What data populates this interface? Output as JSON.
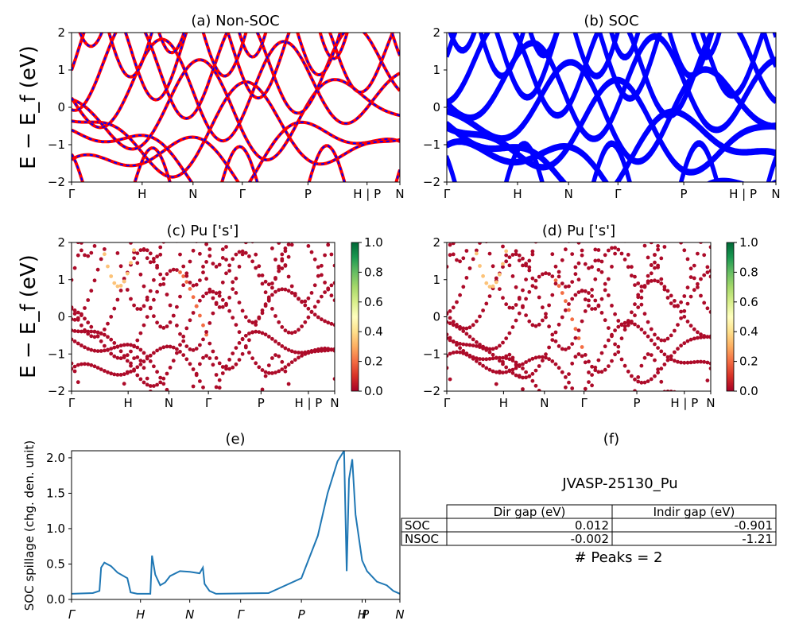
{
  "figure": {
    "bands_ylabel": "E − E_f (eV)",
    "bands_xticks": [
      "Γ",
      "H",
      "N",
      "Γ",
      "P",
      "H | P",
      "N"
    ],
    "bands_yticks": [
      "2",
      "1",
      "0",
      "−1",
      "−2"
    ],
    "cbar_ticks": [
      "1.0",
      "0.8",
      "0.6",
      "0.4",
      "0.2",
      "0.0"
    ],
    "panel_e_xticks": [
      "Γ",
      "H",
      "N",
      "Γ",
      "P",
      "H",
      "P",
      "N"
    ],
    "panel_e_yticks": [
      "2.0",
      "1.5",
      "1.0",
      "0.5",
      "0.0"
    ],
    "panel_e_ylabel": "SOC spillage (chg. den. unit)",
    "colors": {
      "nonsoc_solid": "#ff0000",
      "nonsoc_dash": "#0000ff",
      "soc": "#0000ff",
      "spillage": "#1f77b4",
      "colormap": "RdYlGn"
    }
  },
  "panels": {
    "a": {
      "title": "(a) Non-SOC"
    },
    "b": {
      "title": "(b) SOC"
    },
    "c": {
      "title": "(c)  Pu ['s']"
    },
    "d": {
      "title": "(d) Pu ['s']"
    },
    "e": {
      "title": "(e)"
    },
    "f": {
      "title": "(f)"
    }
  },
  "table": {
    "material": "JVASP-25130_Pu",
    "columns": [
      "Dir gap (eV)",
      "Indir gap (eV)"
    ],
    "rows": [
      {
        "label": "SOC",
        "dir": "0.012",
        "indir": "-0.901"
      },
      {
        "label": "NSOC",
        "dir": "-0.002",
        "indir": "-1.21"
      }
    ],
    "peaks": "# Peaks = 2"
  },
  "chart_data": [
    {
      "type": "line",
      "title": "(a) Non-SOC",
      "ylabel": "E − E_f (eV)",
      "ylim": [
        -2,
        2
      ],
      "x_ticks": [
        "Γ",
        "H",
        "N",
        "Γ",
        "P",
        "H | P",
        "N"
      ],
      "series": [
        {
          "name": "",
          "style": "red solid with blue dashes",
          "values": "band structure"
        }
      ]
    },
    {
      "type": "line",
      "title": "(b) SOC",
      "ylim": [
        -2,
        2
      ],
      "x_ticks": [
        "Γ",
        "H",
        "N",
        "Γ",
        "P",
        "H | P",
        "N"
      ]
    },
    {
      "type": "scatter",
      "title": "(c)  Pu ['s']",
      "ylim": [
        -2,
        2
      ],
      "colorbar": [
        0,
        1
      ]
    },
    {
      "type": "scatter",
      "title": "(d) Pu ['s']",
      "ylim": [
        -2,
        2
      ],
      "colorbar": [
        0,
        1
      ]
    },
    {
      "type": "line",
      "title": "(e)",
      "ylabel": "SOC spillage (chg. den. unit)",
      "ylim": [
        0,
        2.1
      ],
      "x_ticks": [
        "Γ",
        "H",
        "N",
        "Γ",
        "P",
        "H",
        "P",
        "N"
      ],
      "points": [
        [
          0,
          0.08
        ],
        [
          0.065,
          0.09
        ],
        [
          0.085,
          0.12
        ],
        [
          0.09,
          0.45
        ],
        [
          0.1,
          0.52
        ],
        [
          0.12,
          0.47
        ],
        [
          0.14,
          0.38
        ],
        [
          0.17,
          0.3
        ],
        [
          0.18,
          0.1
        ],
        [
          0.2,
          0.08
        ],
        [
          0.24,
          0.08
        ],
        [
          0.245,
          0.62
        ],
        [
          0.255,
          0.35
        ],
        [
          0.27,
          0.2
        ],
        [
          0.285,
          0.24
        ],
        [
          0.3,
          0.33
        ],
        [
          0.33,
          0.4
        ],
        [
          0.36,
          0.39
        ],
        [
          0.39,
          0.37
        ],
        [
          0.4,
          0.45
        ],
        [
          0.405,
          0.22
        ],
        [
          0.42,
          0.12
        ],
        [
          0.44,
          0.08
        ],
        [
          0.6,
          0.09
        ],
        [
          0.7,
          0.3
        ],
        [
          0.75,
          0.9
        ],
        [
          0.78,
          1.5
        ],
        [
          0.81,
          1.95
        ],
        [
          0.83,
          2.1
        ],
        [
          0.838,
          0.4
        ],
        [
          0.845,
          1.7
        ],
        [
          0.855,
          1.98
        ],
        [
          0.865,
          1.2
        ],
        [
          0.885,
          0.55
        ],
        [
          0.89,
          0.5
        ],
        [
          0.9,
          0.4
        ],
        [
          0.93,
          0.25
        ],
        [
          0.96,
          0.2
        ],
        [
          0.98,
          0.12
        ],
        [
          1.0,
          0.08
        ]
      ]
    }
  ]
}
